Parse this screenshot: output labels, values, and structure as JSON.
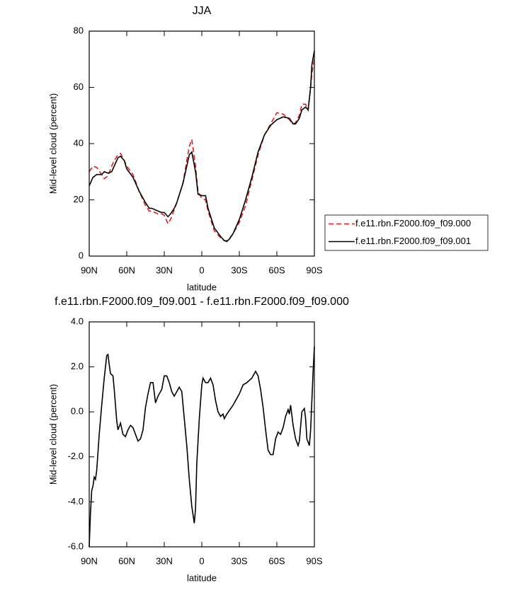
{
  "chart_data": [
    {
      "type": "line",
      "title": "JJA",
      "x_label": "latitude",
      "y_label": "Mid-level cloud (percent)",
      "x": [
        90,
        87,
        84,
        80,
        78,
        75,
        72,
        70,
        67,
        65,
        62,
        60,
        55,
        50,
        45,
        42,
        40,
        35,
        32,
        30,
        27,
        25,
        22,
        20,
        15,
        12,
        10,
        8,
        5,
        3,
        0,
        -3,
        -5,
        -10,
        -15,
        -18,
        -20,
        -22,
        -25,
        -30,
        -35,
        -40,
        -45,
        -50,
        -55,
        -60,
        -65,
        -70,
        -73,
        -75,
        -78,
        -80,
        -83,
        -85,
        -87,
        -88,
        -90
      ],
      "series": [
        {
          "name": "f.e11.rbn.F2000.f09_f09.000",
          "color": "#e31a1c",
          "dash": true,
          "values": [
            30,
            32,
            31.5,
            29,
            27.5,
            28.5,
            32,
            34,
            36,
            36.5,
            34,
            32,
            29,
            23,
            18,
            16,
            16,
            15,
            15,
            14.5,
            11.5,
            13,
            16.5,
            19,
            26,
            34,
            39,
            41.5,
            32,
            23,
            20.5,
            20,
            16,
            9,
            6.5,
            5.5,
            5.5,
            6.2,
            8,
            12,
            18,
            27,
            36,
            43,
            47,
            51,
            50.5,
            48.5,
            47,
            47.5,
            50,
            54,
            54,
            52,
            60,
            65,
            70
          ]
        },
        {
          "name": "f.e11.rbn.F2000.f09_f09.001",
          "color": "#000000",
          "dash": false,
          "values": [
            25,
            28,
            29,
            29,
            30,
            29.5,
            30,
            32,
            35,
            35.5,
            34,
            31,
            28,
            23,
            19,
            17,
            17,
            16,
            15.5,
            15.5,
            14,
            15,
            17,
            19,
            26,
            32,
            36,
            37,
            30,
            22,
            21.5,
            21.5,
            17,
            10,
            7,
            5.5,
            5.2,
            6,
            8,
            13,
            20,
            28,
            37,
            43,
            46.5,
            48.5,
            49.5,
            49,
            47,
            47,
            49,
            52,
            53,
            52,
            60,
            68,
            73
          ]
        }
      ],
      "xlim": [
        90,
        -90
      ],
      "xticks": [
        {
          "value": 90,
          "label": "90N"
        },
        {
          "value": 60,
          "label": "60N"
        },
        {
          "value": 30,
          "label": "30N"
        },
        {
          "value": 0,
          "label": "0"
        },
        {
          "value": -30,
          "label": "30S"
        },
        {
          "value": -60,
          "label": "60S"
        },
        {
          "value": -90,
          "label": "90S"
        }
      ],
      "ylim": [
        0,
        80
      ],
      "yticks": [
        0,
        20,
        40,
        60,
        80
      ],
      "legend": "right"
    },
    {
      "type": "line",
      "title": "f.e11.rbn.F2000.f09_f09.001 - f.e11.rbn.F2000.f09_f09.000",
      "x_label": "latitude",
      "y_label": "Mid-level cloud (percent)",
      "x": [
        90,
        89,
        88,
        87,
        86,
        85,
        84,
        82,
        80,
        78,
        76,
        75,
        74,
        73,
        71,
        70,
        68,
        67,
        65,
        63,
        61,
        59,
        57,
        55,
        53,
        51,
        49,
        47,
        45,
        43,
        41,
        39,
        37,
        35,
        32,
        30,
        28,
        26,
        24,
        22,
        20,
        18,
        16,
        14,
        12,
        10,
        8,
        6,
        5,
        4,
        2,
        0,
        -1,
        -3,
        -5,
        -7,
        -9,
        -11,
        -13,
        -15,
        -17,
        -18,
        -20,
        -25,
        -30,
        -33,
        -36,
        -40,
        -43,
        -45,
        -47,
        -49,
        -51,
        -53,
        -55,
        -57,
        -59,
        -61,
        -63,
        -65,
        -67,
        -69,
        -70,
        -71,
        -73,
        -75,
        -77,
        -78,
        -80,
        -82,
        -83,
        -84,
        -86,
        -87,
        -88,
        -89,
        -90
      ],
      "series": [
        {
          "name": "difference",
          "color": "#000000",
          "dash": false,
          "values": [
            -6,
            -4.5,
            -3.5,
            -3.3,
            -2.9,
            -3,
            -2.6,
            -1,
            0.3,
            1.5,
            2.5,
            2.55,
            2.1,
            1.7,
            1.6,
            1.0,
            -0.4,
            -0.8,
            -0.5,
            -1.0,
            -1.1,
            -0.8,
            -0.6,
            -0.7,
            -1.0,
            -1.3,
            -1.2,
            -0.8,
            0.2,
            0.8,
            1.3,
            1.3,
            0.4,
            0.7,
            1.0,
            1.6,
            1.6,
            1.3,
            0.9,
            0.7,
            0.9,
            1.1,
            0.9,
            -0.3,
            -1.5,
            -3,
            -4.2,
            -4.95,
            -4.3,
            -2.3,
            -0.3,
            1.2,
            1.5,
            1.3,
            1.3,
            1.5,
            1.2,
            0.5,
            0.0,
            -0.2,
            -0.1,
            -0.3,
            -0.1,
            0.3,
            0.8,
            1.2,
            1.3,
            1.5,
            1.8,
            1.6,
            1.0,
            0.2,
            -0.8,
            -1.7,
            -1.9,
            -1.9,
            -1.2,
            -0.9,
            -1.0,
            -0.7,
            -0.2,
            0.1,
            -0.1,
            0.3,
            -0.6,
            -1.2,
            -1.5,
            -1.3,
            0.0,
            0.15,
            -0.3,
            -1.2,
            -1.5,
            -0.8,
            0.5,
            1.8,
            2.9
          ]
        }
      ],
      "xlim": [
        90,
        -90
      ],
      "xticks": [
        {
          "value": 90,
          "label": "90N"
        },
        {
          "value": 60,
          "label": "60N"
        },
        {
          "value": 30,
          "label": "30N"
        },
        {
          "value": 0,
          "label": "0"
        },
        {
          "value": -30,
          "label": "30S"
        },
        {
          "value": -60,
          "label": "60S"
        },
        {
          "value": -90,
          "label": "90S"
        }
      ],
      "ylim": [
        -6,
        4
      ],
      "yticks": [
        {
          "value": -6,
          "label": "-6.0"
        },
        {
          "value": -4,
          "label": "-4.0"
        },
        {
          "value": -2,
          "label": "-2.0"
        },
        {
          "value": 0,
          "label": "0.0"
        },
        {
          "value": 2,
          "label": "2.0"
        },
        {
          "value": 4,
          "label": "4.0"
        }
      ]
    }
  ]
}
